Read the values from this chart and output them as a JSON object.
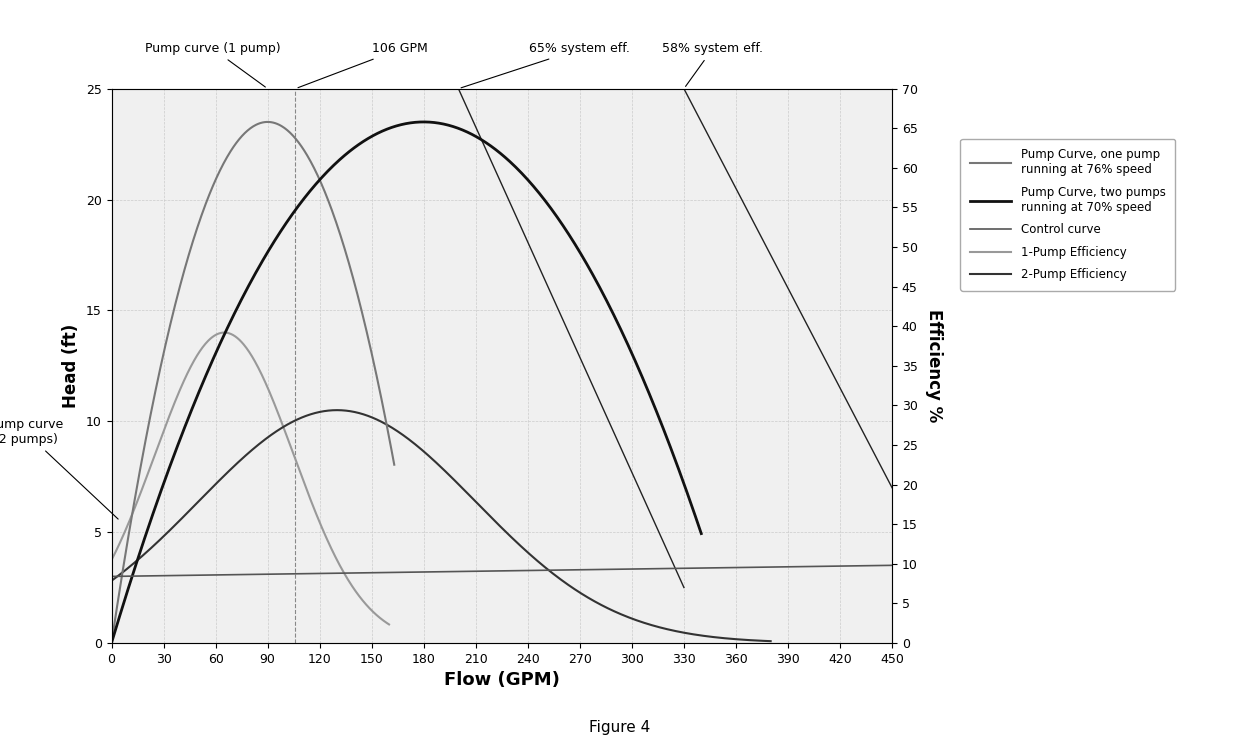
{
  "xlabel": "Flow (GPM)",
  "ylabel_left": "Head (ft)",
  "ylabel_right": "Efficiency %",
  "xlim": [
    0,
    450
  ],
  "ylim_left": [
    0,
    25
  ],
  "ylim_right": [
    0,
    70
  ],
  "xticks": [
    0,
    30,
    60,
    90,
    120,
    150,
    180,
    210,
    240,
    270,
    300,
    330,
    360,
    390,
    420,
    450
  ],
  "yticks_left": [
    0,
    5,
    10,
    15,
    20,
    25
  ],
  "yticks_right": [
    0,
    5,
    10,
    15,
    20,
    25,
    30,
    35,
    40,
    45,
    50,
    55,
    60,
    65,
    70
  ],
  "color_1pump": "#777777",
  "color_2pump": "#111111",
  "color_control": "#555555",
  "color_eff1": "#999999",
  "color_eff2": "#333333",
  "color_syslines": "#222222",
  "legend_labels": [
    "Pump Curve, one pump\nrunning at 76% speed",
    "Pump Curve, two pumps\nrunning at 70% speed",
    "Control curve",
    "1-Pump Efficiency",
    "2-Pump Efficiency"
  ],
  "figure_caption": "Figure 4",
  "bg_color": "#f0f0f0",
  "grid_color": "#cccccc"
}
